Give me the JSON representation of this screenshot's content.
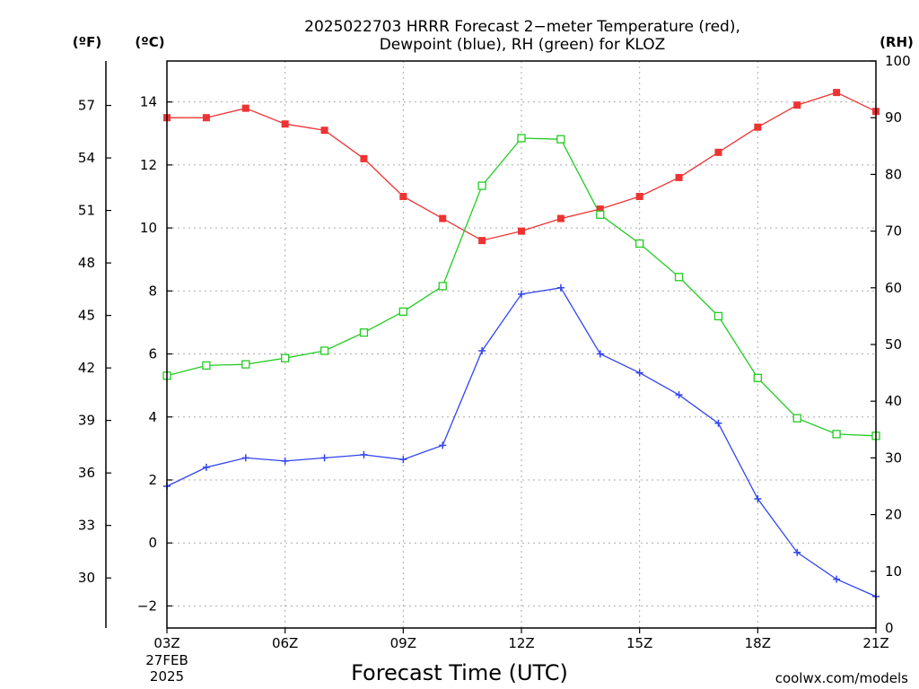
{
  "chart_data": {
    "type": "line",
    "title": [
      "2025022703 HRRR Forecast 2−meter Temperature (red),",
      "Dewpoint (blue), RH (green) for KLOZ"
    ],
    "xlabel": "Forecast Time (UTC)",
    "x_ticks": [
      "03Z",
      "06Z",
      "09Z",
      "12Z",
      "15Z",
      "18Z",
      "21Z"
    ],
    "date_label": [
      "27FEB",
      "2025"
    ],
    "credit": "coolwx.com/models",
    "units": {
      "fahrenheit": "(ºF)",
      "celsius": "(ºC)",
      "rh": "(RH)"
    },
    "axis_c": {
      "min": -2.7,
      "max": 15.3,
      "ticks": [
        -2,
        0,
        2,
        4,
        6,
        8,
        10,
        12,
        14
      ]
    },
    "axis_f": {
      "ticks": [
        30,
        33,
        36,
        39,
        42,
        45,
        48,
        51,
        54,
        57
      ]
    },
    "axis_rh": {
      "min": 0,
      "max": 100,
      "ticks": [
        0,
        10,
        20,
        30,
        40,
        50,
        60,
        70,
        80,
        90,
        100
      ]
    },
    "x": [
      "03Z",
      "04Z",
      "05Z",
      "06Z",
      "07Z",
      "08Z",
      "09Z",
      "10Z",
      "11Z",
      "12Z",
      "13Z",
      "14Z",
      "15Z",
      "16Z",
      "17Z",
      "18Z",
      "19Z",
      "20Z",
      "21Z"
    ],
    "grid": true,
    "colors": {
      "temperature": "#ee3333",
      "dewpoint": "#3344ee",
      "rh": "#22cc22",
      "grid": "#aaaaaa",
      "credit": "#e03030"
    },
    "series": [
      {
        "key": "temperature",
        "axis": "celsius",
        "marker": "filled-square",
        "values": [
          13.5,
          13.5,
          13.8,
          13.3,
          13.1,
          12.2,
          11.0,
          10.3,
          9.6,
          9.9,
          10.3,
          10.6,
          11.0,
          11.6,
          12.4,
          13.2,
          13.9,
          14.3,
          13.7
        ]
      },
      {
        "key": "dewpoint",
        "axis": "celsius",
        "marker": "plus",
        "values": [
          1.8,
          2.4,
          2.7,
          2.6,
          2.7,
          2.8,
          2.65,
          3.1,
          6.1,
          7.9,
          8.1,
          6.0,
          5.4,
          4.7,
          3.8,
          1.4,
          -0.3,
          -1.15,
          -1.7
        ]
      },
      {
        "key": "rh",
        "axis": "rh",
        "marker": "open-square",
        "values": [
          44.5,
          46.3,
          46.5,
          47.6,
          48.9,
          52.1,
          55.8,
          60.3,
          78.0,
          86.4,
          86.2,
          72.9,
          67.8,
          61.9,
          55.0,
          44.1,
          37.0,
          34.2,
          33.9
        ]
      }
    ]
  }
}
